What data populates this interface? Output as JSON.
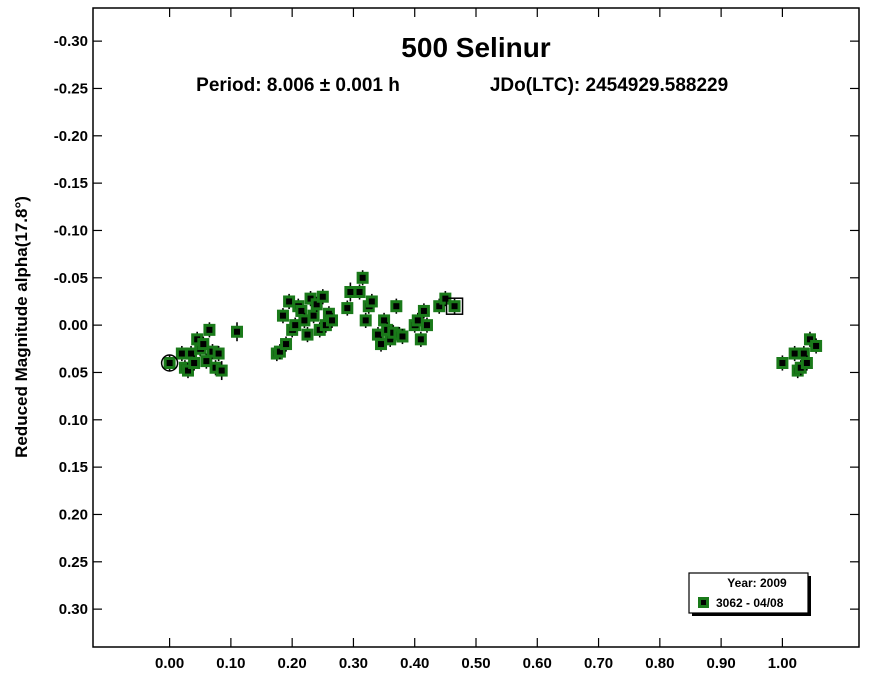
{
  "chart_data": {
    "type": "scatter",
    "title": "500 Selinur",
    "subtitle_period": "Period: 8.006 ± 0.001 h",
    "subtitle_epoch": "JDo(LTC): 2454929.588229",
    "xlabel": "",
    "ylabel": "Reduced Magnitude alpha(17.8°)",
    "xlim": [
      -0.125,
      1.125
    ],
    "ylim": [
      -0.335,
      0.34
    ],
    "y_inverted": true,
    "grid": false,
    "x_ticks": [
      {
        "value": 0.0,
        "label": "0.00"
      },
      {
        "value": 0.1,
        "label": "0.10"
      },
      {
        "value": 0.2,
        "label": "0.20"
      },
      {
        "value": 0.3,
        "label": "0.30"
      },
      {
        "value": 0.4,
        "label": "0.40"
      },
      {
        "value": 0.5,
        "label": "0.50"
      },
      {
        "value": 0.6,
        "label": "0.60"
      },
      {
        "value": 0.7,
        "label": "0.70"
      },
      {
        "value": 0.8,
        "label": "0.80"
      },
      {
        "value": 0.9,
        "label": "0.90"
      },
      {
        "value": 1.0,
        "label": "1.00"
      }
    ],
    "y_ticks": [
      {
        "value": -0.3,
        "label": "-0.30"
      },
      {
        "value": -0.25,
        "label": "-0.25"
      },
      {
        "value": -0.2,
        "label": "-0.20"
      },
      {
        "value": -0.15,
        "label": "-0.15"
      },
      {
        "value": -0.1,
        "label": "-0.10"
      },
      {
        "value": -0.05,
        "label": "-0.05"
      },
      {
        "value": 0.0,
        "label": "0.00"
      },
      {
        "value": 0.05,
        "label": "0.05"
      },
      {
        "value": 0.1,
        "label": "0.10"
      },
      {
        "value": 0.15,
        "label": "0.15"
      },
      {
        "value": 0.2,
        "label": "0.20"
      },
      {
        "value": 0.25,
        "label": "0.25"
      },
      {
        "value": 0.3,
        "label": "0.30"
      }
    ],
    "legend": {
      "placement": "bottom-right",
      "header": "Year: 2009",
      "entries": [
        {
          "label": "3062 - 04/08",
          "color": "#1a7a1a"
        }
      ]
    },
    "marker_color": "#1a7a1a",
    "series": [
      {
        "name": "3062 - 04/08",
        "points": [
          {
            "x": 0.0,
            "y": 0.04,
            "err": 0.008
          },
          {
            "x": 0.02,
            "y": 0.03,
            "err": 0.008
          },
          {
            "x": 0.025,
            "y": 0.045,
            "err": 0.008
          },
          {
            "x": 0.03,
            "y": 0.048,
            "err": 0.008
          },
          {
            "x": 0.035,
            "y": 0.03,
            "err": 0.008
          },
          {
            "x": 0.04,
            "y": 0.04,
            "err": 0.008
          },
          {
            "x": 0.045,
            "y": 0.015,
            "err": 0.008
          },
          {
            "x": 0.05,
            "y": 0.025,
            "err": 0.008
          },
          {
            "x": 0.055,
            "y": 0.02,
            "err": 0.008
          },
          {
            "x": 0.06,
            "y": 0.038,
            "err": 0.008
          },
          {
            "x": 0.065,
            "y": 0.005,
            "err": 0.008
          },
          {
            "x": 0.07,
            "y": 0.028,
            "err": 0.008
          },
          {
            "x": 0.075,
            "y": 0.045,
            "err": 0.008
          },
          {
            "x": 0.08,
            "y": 0.03,
            "err": 0.008
          },
          {
            "x": 0.085,
            "y": 0.048,
            "err": 0.01
          },
          {
            "x": 0.11,
            "y": 0.007,
            "err": 0.01
          },
          {
            "x": 0.175,
            "y": 0.03,
            "err": 0.008
          },
          {
            "x": 0.18,
            "y": 0.028,
            "err": 0.008
          },
          {
            "x": 0.185,
            "y": -0.01,
            "err": 0.008
          },
          {
            "x": 0.19,
            "y": 0.02,
            "err": 0.008
          },
          {
            "x": 0.195,
            "y": -0.025,
            "err": 0.008
          },
          {
            "x": 0.2,
            "y": 0.005,
            "err": 0.008
          },
          {
            "x": 0.205,
            "y": 0.0,
            "err": 0.008
          },
          {
            "x": 0.21,
            "y": -0.02,
            "err": 0.008
          },
          {
            "x": 0.215,
            "y": -0.015,
            "err": 0.008
          },
          {
            "x": 0.22,
            "y": -0.005,
            "err": 0.008
          },
          {
            "x": 0.225,
            "y": 0.01,
            "err": 0.008
          },
          {
            "x": 0.23,
            "y": -0.028,
            "err": 0.008
          },
          {
            "x": 0.235,
            "y": -0.01,
            "err": 0.008
          },
          {
            "x": 0.24,
            "y": -0.022,
            "err": 0.008
          },
          {
            "x": 0.245,
            "y": 0.005,
            "err": 0.008
          },
          {
            "x": 0.25,
            "y": -0.03,
            "err": 0.008
          },
          {
            "x": 0.255,
            "y": 0.0,
            "err": 0.008
          },
          {
            "x": 0.26,
            "y": -0.012,
            "err": 0.008
          },
          {
            "x": 0.265,
            "y": -0.005,
            "err": 0.008
          },
          {
            "x": 0.29,
            "y": -0.018,
            "err": 0.008
          },
          {
            "x": 0.295,
            "y": -0.035,
            "err": 0.01
          },
          {
            "x": 0.31,
            "y": -0.035,
            "err": 0.008
          },
          {
            "x": 0.315,
            "y": -0.05,
            "err": 0.008
          },
          {
            "x": 0.32,
            "y": -0.005,
            "err": 0.008
          },
          {
            "x": 0.325,
            "y": -0.02,
            "err": 0.008
          },
          {
            "x": 0.33,
            "y": -0.025,
            "err": 0.008
          },
          {
            "x": 0.34,
            "y": 0.01,
            "err": 0.008
          },
          {
            "x": 0.345,
            "y": 0.02,
            "err": 0.008
          },
          {
            "x": 0.35,
            "y": -0.005,
            "err": 0.008
          },
          {
            "x": 0.355,
            "y": 0.005,
            "err": 0.008
          },
          {
            "x": 0.36,
            "y": 0.015,
            "err": 0.008
          },
          {
            "x": 0.365,
            "y": 0.008,
            "err": 0.008
          },
          {
            "x": 0.37,
            "y": -0.02,
            "err": 0.008
          },
          {
            "x": 0.375,
            "y": 0.01,
            "err": 0.008
          },
          {
            "x": 0.38,
            "y": 0.012,
            "err": 0.008
          },
          {
            "x": 0.4,
            "y": 0.0,
            "err": 0.008
          },
          {
            "x": 0.405,
            "y": -0.005,
            "err": 0.008
          },
          {
            "x": 0.41,
            "y": 0.015,
            "err": 0.008
          },
          {
            "x": 0.415,
            "y": -0.015,
            "err": 0.008
          },
          {
            "x": 0.42,
            "y": 0.0,
            "err": 0.008
          },
          {
            "x": 0.44,
            "y": -0.02,
            "err": 0.008
          },
          {
            "x": 0.45,
            "y": -0.028,
            "err": 0.008
          },
          {
            "x": 0.465,
            "y": -0.02,
            "err": 0.008
          },
          {
            "x": 1.0,
            "y": 0.04,
            "err": 0.008
          },
          {
            "x": 1.02,
            "y": 0.03,
            "err": 0.008
          },
          {
            "x": 1.025,
            "y": 0.048,
            "err": 0.008
          },
          {
            "x": 1.03,
            "y": 0.045,
            "err": 0.008
          },
          {
            "x": 1.035,
            "y": 0.03,
            "err": 0.008
          },
          {
            "x": 1.04,
            "y": 0.04,
            "err": 0.008
          },
          {
            "x": 1.045,
            "y": 0.015,
            "err": 0.008
          },
          {
            "x": 1.055,
            "y": 0.022,
            "err": 0.008
          }
        ]
      }
    ],
    "open_markers": [
      {
        "shape": "circle",
        "x": 0.0,
        "y": 0.04
      },
      {
        "shape": "square",
        "x": 0.465,
        "y": -0.02
      }
    ]
  }
}
